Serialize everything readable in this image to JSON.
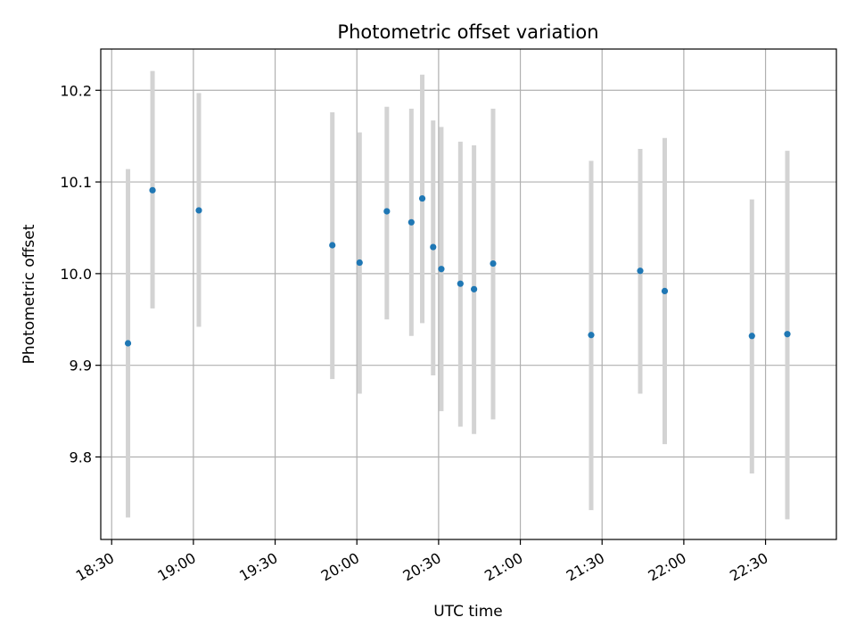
{
  "chart_data": {
    "type": "scatter",
    "title": "Photometric offset variation",
    "xlabel": "UTC time",
    "ylabel": "Photometric offset",
    "x_ticks": [
      "18:30",
      "19:00",
      "19:30",
      "20:00",
      "20:30",
      "21:00",
      "21:30",
      "22:00",
      "22:30"
    ],
    "y_ticks": [
      "9.8",
      "9.9",
      "10.0",
      "10.1",
      "10.2"
    ],
    "xlim": [
      "18:26",
      "22:56"
    ],
    "ylim": [
      9.71,
      10.245
    ],
    "grid": true,
    "colors": {
      "point": "#1f77b4",
      "errorbar": "#d3d3d3",
      "grid": "#b0b0b0"
    },
    "points": [
      {
        "x": "18:36",
        "y": 9.924,
        "ylow": 9.734,
        "yhigh": 10.114
      },
      {
        "x": "18:45",
        "y": 10.091,
        "ylow": 9.962,
        "yhigh": 10.221
      },
      {
        "x": "19:02",
        "y": 10.069,
        "ylow": 9.942,
        "yhigh": 10.197
      },
      {
        "x": "19:51",
        "y": 10.031,
        "ylow": 9.885,
        "yhigh": 10.176
      },
      {
        "x": "20:01",
        "y": 10.012,
        "ylow": 9.869,
        "yhigh": 10.154
      },
      {
        "x": "20:11",
        "y": 10.068,
        "ylow": 9.95,
        "yhigh": 10.182
      },
      {
        "x": "20:20",
        "y": 10.056,
        "ylow": 9.932,
        "yhigh": 10.18
      },
      {
        "x": "20:24",
        "y": 10.082,
        "ylow": 9.946,
        "yhigh": 10.217
      },
      {
        "x": "20:28",
        "y": 10.029,
        "ylow": 9.889,
        "yhigh": 10.167
      },
      {
        "x": "20:31",
        "y": 10.005,
        "ylow": 9.85,
        "yhigh": 10.16
      },
      {
        "x": "20:38",
        "y": 9.989,
        "ylow": 9.833,
        "yhigh": 10.144
      },
      {
        "x": "20:43",
        "y": 9.983,
        "ylow": 9.825,
        "yhigh": 10.14
      },
      {
        "x": "20:50",
        "y": 10.011,
        "ylow": 9.841,
        "yhigh": 10.18
      },
      {
        "x": "21:26",
        "y": 9.933,
        "ylow": 9.742,
        "yhigh": 10.123
      },
      {
        "x": "21:44",
        "y": 10.003,
        "ylow": 9.869,
        "yhigh": 10.136
      },
      {
        "x": "21:53",
        "y": 9.981,
        "ylow": 9.814,
        "yhigh": 10.148
      },
      {
        "x": "22:25",
        "y": 9.932,
        "ylow": 9.782,
        "yhigh": 10.081
      },
      {
        "x": "22:38",
        "y": 9.934,
        "ylow": 9.732,
        "yhigh": 10.134
      }
    ]
  }
}
